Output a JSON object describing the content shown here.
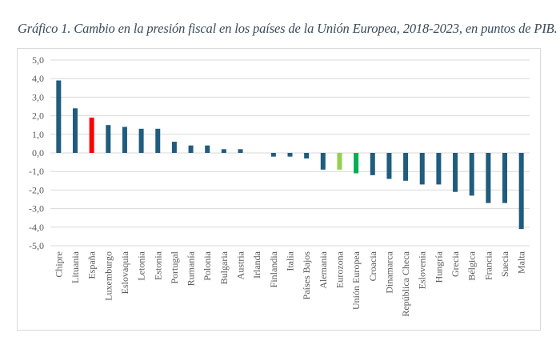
{
  "chart_data": {
    "type": "bar",
    "title": "Gráfico 1. Cambio en la presión fiscal en los países de la Unión Europea, 2018-2023, en puntos de PIB.",
    "xlabel": "",
    "ylabel": "",
    "ylim": [
      -5,
      5
    ],
    "yticks": [
      5,
      4,
      3,
      2,
      1,
      0,
      -1,
      -2,
      -3,
      -4,
      -5
    ],
    "ytick_labels": [
      "5,0",
      "4,0",
      "3,0",
      "2,0",
      "1,0",
      "0,0",
      "-1,0",
      "-2,0",
      "-3,0",
      "-4,0",
      "-5,0"
    ],
    "grid": true,
    "legend": "none",
    "categories": [
      "Chipre",
      "Lituania",
      "España",
      "Luxemburgo",
      "Eslovaquia",
      "Letonia",
      "Estonia",
      "Portugal",
      "Rumanía",
      "Polonia",
      "Bulgaria",
      "Austria",
      "Irlanda",
      "Finlandia",
      "Italia",
      "Países Bajos",
      "Alemania",
      "Eurozona",
      "Unión Europea",
      "Croacia",
      "Dinamarca",
      "República Checa",
      "Eslovenia",
      "Hungría",
      "Grecia",
      "Bélgica",
      "Francia",
      "Suecia",
      "Malta"
    ],
    "values": [
      3.9,
      2.4,
      1.9,
      1.5,
      1.4,
      1.3,
      1.3,
      0.6,
      0.4,
      0.4,
      0.2,
      0.2,
      0.0,
      -0.2,
      -0.2,
      -0.3,
      -0.9,
      -0.9,
      -1.1,
      -1.2,
      -1.4,
      -1.5,
      -1.7,
      -1.7,
      -2.1,
      -2.3,
      -2.7,
      -2.7,
      -4.1
    ],
    "colors": {
      "default": "#1F5C7E",
      "highlight": {
        "España": "#FF0000",
        "Eurozona": "#92D050",
        "Unión Europea": "#00B050"
      },
      "gridline": "#d9d9d9",
      "text": "#595959"
    }
  }
}
